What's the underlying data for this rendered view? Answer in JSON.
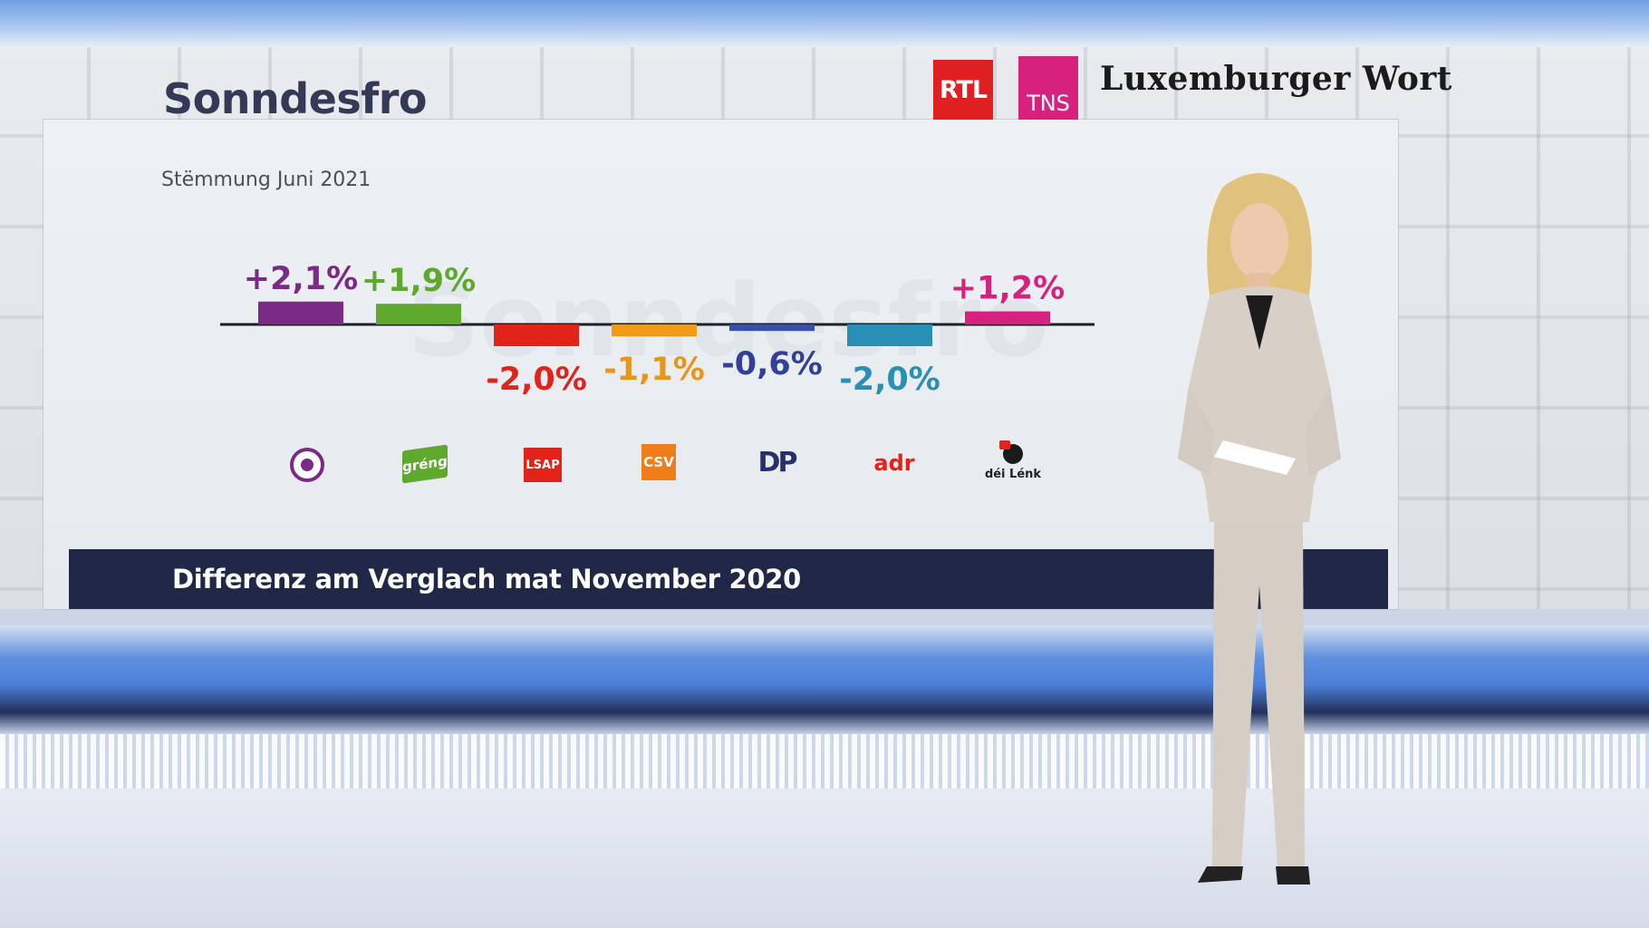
{
  "header": {
    "title": "Sonndesfro",
    "subtitle": "Stëmmung Juni 2021"
  },
  "logos": {
    "rtl": "RTL",
    "tns": "TNS",
    "newspaper": "Luxemburger Wort"
  },
  "footer": {
    "caption": "Differenz am Verglach mat November 2020"
  },
  "parties": [
    {
      "name": "Piraten",
      "icon": "pirate-party-icon"
    },
    {
      "name": "déi gréng",
      "label": "gréng",
      "icon": "greng-icon"
    },
    {
      "name": "LSAP",
      "label": "LSAP",
      "icon": "lsap-icon"
    },
    {
      "name": "CSV",
      "label": "CSV",
      "icon": "csv-icon"
    },
    {
      "name": "DP",
      "label": "DP",
      "icon": "dp-icon"
    },
    {
      "name": "adr",
      "label": "adr",
      "icon": "adr-icon"
    },
    {
      "name": "déi Lénk",
      "label": "déi Lénk",
      "icon": "dei-lenk-icon"
    }
  ],
  "chart_data": {
    "type": "bar",
    "title": "",
    "categories": [
      "Piraten",
      "déi gréng",
      "LSAP",
      "CSV",
      "DP",
      "adr",
      "déi Lénk"
    ],
    "values": [
      2.1,
      1.9,
      -2.0,
      -1.1,
      -0.6,
      -2.0,
      1.2
    ],
    "value_labels": [
      "+2,1%",
      "+1,9%",
      "-2,0%",
      "-1,1%",
      "-0,6%",
      "-2,0%",
      "+1,2%"
    ],
    "colors": [
      "#7b2b86",
      "#5ea82e",
      "#e2231a",
      "#ef9a1a",
      "#3a4fa6",
      "#2a8fb5",
      "#d6217e"
    ],
    "label_colors": [
      "#7b2b86",
      "#5ea82e",
      "#e2231a",
      "#e8961a",
      "#33409a",
      "#2a8fb5",
      "#d6217e"
    ],
    "unit": "%",
    "grid": false
  }
}
